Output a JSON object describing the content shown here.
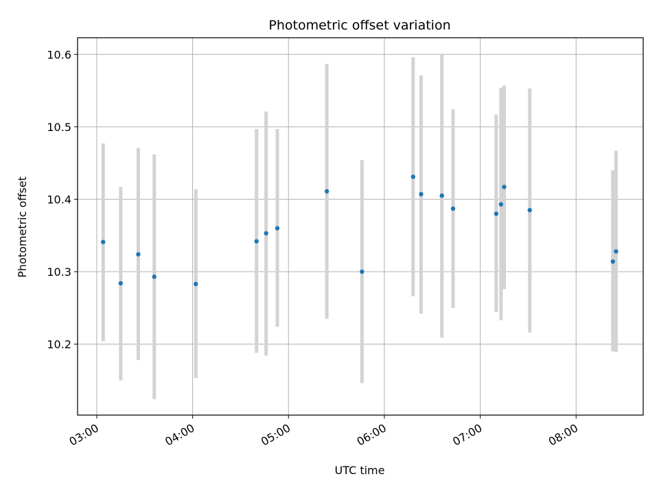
{
  "chart_data": {
    "type": "scatter",
    "title": "Photometric offset variation",
    "xlabel": "UTC time",
    "ylabel": "Photometric offset",
    "x_ticks": [
      "03:00",
      "04:00",
      "05:00",
      "06:00",
      "07:00",
      "08:00"
    ],
    "y_ticks": [
      "10.2",
      "10.3",
      "10.4",
      "10.5",
      "10.6"
    ],
    "xlim": [
      "02:48",
      "08:42"
    ],
    "ylim": [
      10.102,
      10.623
    ],
    "grid": true,
    "marker_color": "#1f77b4",
    "errorbar_color": "#d3d3d3",
    "points": [
      {
        "x": "03:04",
        "y": 10.341,
        "err_low": 10.204,
        "err_high": 10.477
      },
      {
        "x": "03:15",
        "y": 10.284,
        "err_low": 10.15,
        "err_high": 10.417
      },
      {
        "x": "03:26",
        "y": 10.324,
        "err_low": 10.178,
        "err_high": 10.471
      },
      {
        "x": "03:36",
        "y": 10.293,
        "err_low": 10.124,
        "err_high": 10.462
      },
      {
        "x": "04:02",
        "y": 10.283,
        "err_low": 10.153,
        "err_high": 10.414
      },
      {
        "x": "04:40",
        "y": 10.342,
        "err_low": 10.188,
        "err_high": 10.497
      },
      {
        "x": "04:46",
        "y": 10.353,
        "err_low": 10.184,
        "err_high": 10.521
      },
      {
        "x": "04:53",
        "y": 10.36,
        "err_low": 10.224,
        "err_high": 10.497
      },
      {
        "x": "05:24",
        "y": 10.411,
        "err_low": 10.235,
        "err_high": 10.587
      },
      {
        "x": "05:46",
        "y": 10.3,
        "err_low": 10.146,
        "err_high": 10.454
      },
      {
        "x": "06:18",
        "y": 10.431,
        "err_low": 10.266,
        "err_high": 10.596
      },
      {
        "x": "06:23",
        "y": 10.407,
        "err_low": 10.242,
        "err_high": 10.571
      },
      {
        "x": "06:36",
        "y": 10.405,
        "err_low": 10.209,
        "err_high": 10.601
      },
      {
        "x": "06:43",
        "y": 10.387,
        "err_low": 10.25,
        "err_high": 10.524
      },
      {
        "x": "07:10",
        "y": 10.38,
        "err_low": 10.244,
        "err_high": 10.517
      },
      {
        "x": "07:13",
        "y": 10.393,
        "err_low": 10.233,
        "err_high": 10.554
      },
      {
        "x": "07:15",
        "y": 10.417,
        "err_low": 10.276,
        "err_high": 10.557
      },
      {
        "x": "07:31",
        "y": 10.385,
        "err_low": 10.216,
        "err_high": 10.553
      },
      {
        "x": "08:23",
        "y": 10.314,
        "err_low": 10.19,
        "err_high": 10.44
      },
      {
        "x": "08:25",
        "y": 10.328,
        "err_low": 10.189,
        "err_high": 10.467
      }
    ]
  }
}
